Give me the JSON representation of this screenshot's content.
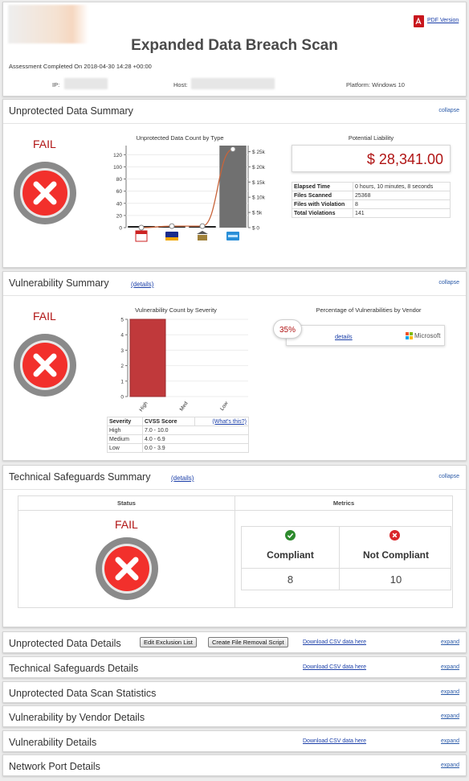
{
  "header": {
    "pdf_link": "PDF Version",
    "title": "Expanded Data Breach Scan",
    "assessment": "Assessment Completed On 2018-04-30 14:28 +00:00",
    "ip_label": "IP:",
    "host_label": "Host:",
    "platform": "Platform: Windows 10"
  },
  "unprotected_summary": {
    "title": "Unprotected Data Summary",
    "collapse": "collapse",
    "status": "FAIL",
    "chart_title": "Unprotected Data Count by Type",
    "liability_title": "Potential Liability",
    "liability_value": "$ 28,341.00",
    "stats": [
      {
        "label": "Elapsed Time",
        "value": "0 hours, 10 minutes, 8 seconds"
      },
      {
        "label": "Files Scanned",
        "value": "25368"
      },
      {
        "label": "Files with Violation",
        "value": "8"
      },
      {
        "label": "Total Violations",
        "value": "141"
      }
    ]
  },
  "vuln_summary": {
    "title": "Vulnerability Summary",
    "details": "(details)",
    "collapse": "collapse",
    "status": "FAIL",
    "chart_title": "Vulnerability Count by Severity",
    "vendor_title": "Percentage of Vulnerabilities by Vendor",
    "vendor_pct": "35%",
    "vendor_details": "details",
    "vendor_name": "Microsoft",
    "severity_headers": [
      "Severity",
      "CVSS Score",
      "(What's this?)"
    ],
    "severity_rows": [
      {
        "severity": "High",
        "score": "7.0 - 10.0"
      },
      {
        "severity": "Medium",
        "score": "4.0 - 6.9"
      },
      {
        "severity": "Low",
        "score": "0.0 - 3.9"
      }
    ]
  },
  "tech_summary": {
    "title": "Technical Safeguards Summary",
    "details": "(details)",
    "collapse": "collapse",
    "status_header": "Status",
    "metrics_header": "Metrics",
    "status": "FAIL",
    "compliant_label": "Compliant",
    "not_compliant_label": "Not Compliant",
    "compliant_value": "8",
    "not_compliant_value": "10"
  },
  "sections": [
    {
      "title": "Unprotected Data Details",
      "expand": "expand",
      "button1": "Edit Exclusion List",
      "button2": "Create File Removal Script",
      "download": "Download CSV data here"
    },
    {
      "title": "Technical Safeguards Details",
      "expand": "expand",
      "download": "Download CSV data here"
    },
    {
      "title": "Unprotected Data Scan Statistics",
      "expand": "expand"
    },
    {
      "title": "Vulnerability by Vendor Details",
      "expand": "expand"
    },
    {
      "title": "Vulnerability Details",
      "expand": "expand",
      "download": "Download CSV data here"
    },
    {
      "title": "Network Port Details",
      "expand": "expand"
    }
  ],
  "colors": {
    "fail_red": "#b01414",
    "link_blue": "#1a3ea8",
    "bar_red": "#c0393b",
    "bar_gray": "#707070",
    "line_orange": "#c8643a"
  },
  "icons": [
    "pdf-icon",
    "calendar-icon",
    "visa-card-icon",
    "bank-icon",
    "amex-card-icon",
    "fail-x-icon",
    "check-icon",
    "x-circle-icon",
    "microsoft-logo-icon"
  ],
  "chart_data": [
    {
      "type": "bar",
      "title": "Unprotected Data Count by Type",
      "categories": [
        "calendar-icon",
        "visa-card-icon",
        "bank-icon",
        "amex-card-icon"
      ],
      "series": [
        {
          "values": [
            0,
            0,
            0,
            135
          ]
        },
        {
          "values": [
            0,
            500,
            500,
            25800
          ],
          "axis": "right",
          "style": "line"
        }
      ],
      "y_ticks": [
        "0",
        "20",
        "40",
        "60",
        "80",
        "100",
        "120"
      ],
      "y2_ticks": [
        "$ 0",
        "$ 5k",
        "$ 10k",
        "$ 15k",
        "$ 20k",
        "$ 25k"
      ],
      "ylim": [
        0,
        135
      ],
      "y2lim": [
        0,
        27000
      ]
    },
    {
      "type": "bar",
      "title": "Vulnerability Count by Severity",
      "categories": [
        "High",
        "Med",
        "Low"
      ],
      "values": [
        5,
        0,
        0
      ],
      "y_ticks": [
        "0",
        "1",
        "2",
        "3",
        "4",
        "5"
      ],
      "ylim": [
        0,
        5
      ]
    }
  ]
}
